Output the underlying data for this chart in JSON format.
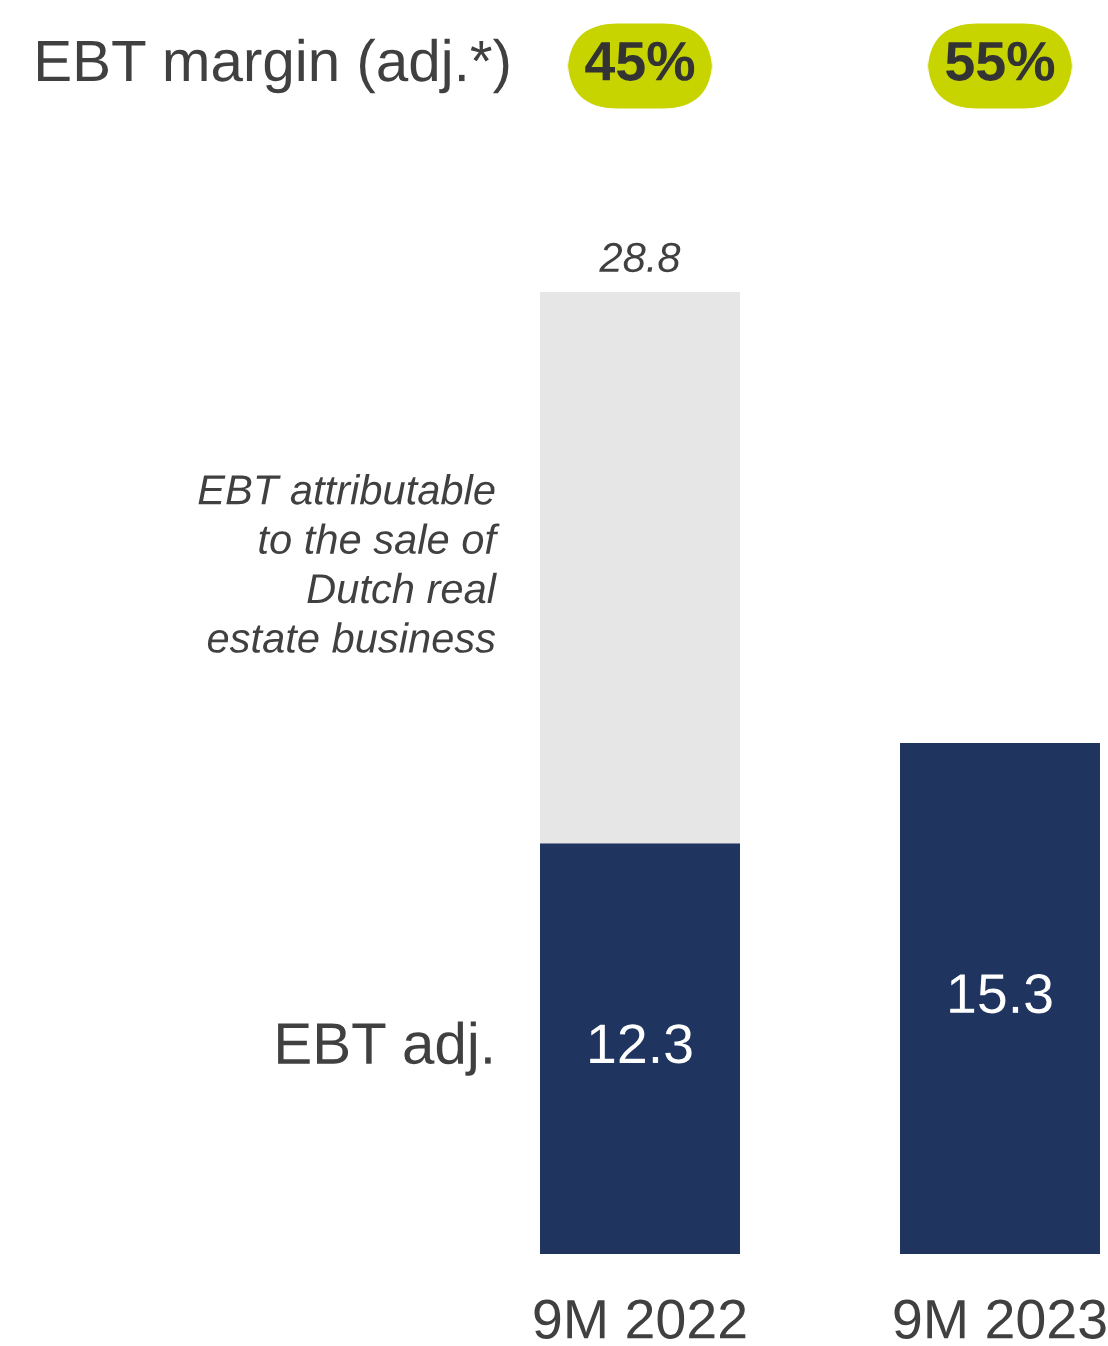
{
  "chart_data": {
    "type": "bar",
    "stacked": true,
    "categories": [
      "9M 2022",
      "9M 2023"
    ],
    "series": [
      {
        "name": "EBT adj.",
        "color": "#1f3560",
        "values": [
          12.3,
          15.3
        ],
        "value_labels": [
          "12.3",
          "15.3"
        ]
      },
      {
        "name": "EBT attributable\nto the sale of\nDutch real\nestate business",
        "color": "#e6e6e6",
        "values": [
          16.5,
          null
        ]
      }
    ],
    "totals": [
      "28.8",
      null
    ],
    "annotations": [
      "EBT margin (adj.*)",
      "45%",
      "55%"
    ]
  }
}
